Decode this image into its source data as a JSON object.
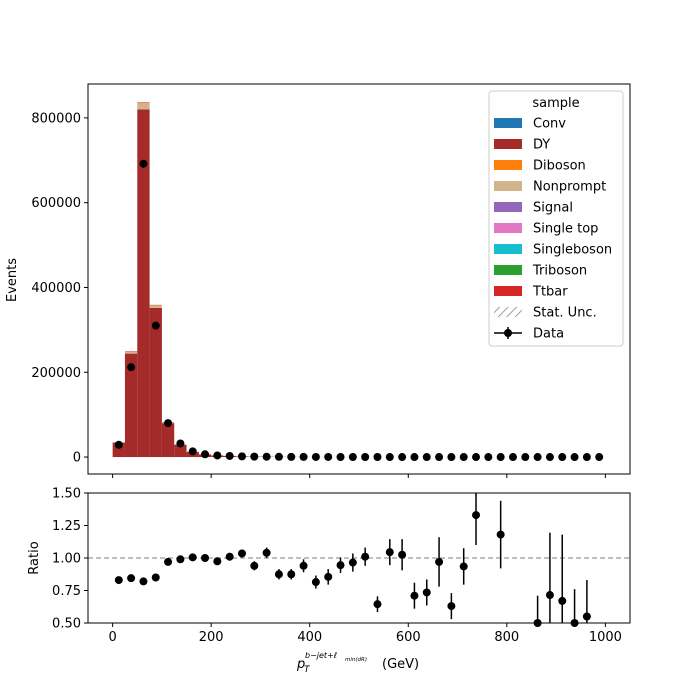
{
  "chart_data": {
    "type": "bar",
    "stacked": true,
    "xlabel": "(GeV)",
    "xlabel_math": {
      "base": "p",
      "sub": "T",
      "sup_main": "b−jet+ℓ",
      "sup_sub": "min(dR)"
    },
    "main_panel": {
      "ylabel": "Events",
      "xlim": [
        -50,
        1050
      ],
      "ylim": [
        -40000,
        880000
      ],
      "yticks": [
        0,
        200000,
        400000,
        600000,
        800000
      ],
      "ytick_labels": [
        "0",
        "200000",
        "400000",
        "600000",
        "800000"
      ]
    },
    "ratio_panel": {
      "ylabel": "Ratio",
      "ylim": [
        0.5,
        1.5
      ],
      "yticks": [
        0.5,
        0.75,
        1.0,
        1.25,
        1.5
      ],
      "ytick_labels": [
        "0.50",
        "0.75",
        "1.00",
        "1.25",
        "1.50"
      ],
      "reference_line": 1.0
    },
    "xticks": [
      0,
      200,
      400,
      600,
      800,
      1000
    ],
    "xtick_labels": [
      "0",
      "200",
      "400",
      "600",
      "800",
      "1000"
    ],
    "bin_edges": [
      0,
      25,
      50,
      75,
      100,
      125,
      150,
      175,
      200,
      225,
      250,
      275,
      300,
      325,
      350,
      375,
      400,
      425,
      450,
      475,
      500,
      525,
      550,
      575,
      600,
      625,
      650,
      675,
      700,
      725,
      750,
      775,
      800,
      825,
      850,
      875,
      900,
      925,
      950,
      975,
      1000
    ],
    "legend": {
      "title": "sample",
      "position": "top-right",
      "entries": [
        {
          "name": "Conv",
          "color": "#1f77b4",
          "kind": "patch"
        },
        {
          "name": "DY",
          "color": "#a52a2a",
          "kind": "patch"
        },
        {
          "name": "Diboson",
          "color": "#ff7f0e",
          "kind": "patch"
        },
        {
          "name": "Nonprompt",
          "color": "#d2b48c",
          "kind": "patch"
        },
        {
          "name": "Signal",
          "color": "#9467bd",
          "kind": "patch"
        },
        {
          "name": "Single top",
          "color": "#e377c2",
          "kind": "patch"
        },
        {
          "name": "Singleboson",
          "color": "#17becf",
          "kind": "patch"
        },
        {
          "name": "Triboson",
          "color": "#2ca02c",
          "kind": "patch"
        },
        {
          "name": "Ttbar",
          "color": "#d62728",
          "kind": "patch"
        },
        {
          "name": "Stat. Unc.",
          "color": "#808080",
          "kind": "hatch"
        },
        {
          "name": "Data",
          "color": "#000000",
          "kind": "errorbar"
        }
      ]
    },
    "series": [
      {
        "name": "DY",
        "values": [
          34000,
          244000,
          820000,
          352000,
          80000,
          29000,
          12000,
          6000,
          3500,
          2500,
          1500,
          1000,
          800,
          600,
          400,
          300,
          250,
          200,
          150,
          120,
          100,
          80,
          60,
          50,
          40,
          30,
          25,
          20,
          15,
          12,
          10,
          8,
          6,
          5,
          4,
          3,
          3,
          2,
          2,
          1
        ]
      },
      {
        "name": "Nonprompt",
        "values": [
          800,
          5000,
          15000,
          6000,
          1500,
          600,
          300,
          150,
          100,
          80,
          60,
          40,
          30,
          20,
          15,
          10,
          8,
          6,
          5,
          4,
          3,
          3,
          2,
          2,
          1,
          1,
          1,
          1,
          1,
          1,
          1,
          1,
          1,
          1,
          1,
          1,
          1,
          1,
          1,
          1
        ]
      },
      {
        "name": "Ttbar",
        "values": [
          200,
          800,
          1500,
          1000,
          600,
          400,
          300,
          200,
          150,
          120,
          100,
          80,
          60,
          50,
          40,
          30,
          25,
          20,
          15,
          12,
          10,
          8,
          6,
          5,
          4,
          3,
          3,
          2,
          2,
          2,
          1,
          1,
          1,
          1,
          1,
          1,
          1,
          1,
          1,
          1
        ]
      },
      {
        "name": "Data",
        "values": [
          29000,
          212000,
          692000,
          310000,
          80000,
          32000,
          13500,
          6500,
          3700,
          2600,
          1600,
          1000,
          800,
          550,
          400,
          300,
          230,
          180,
          140,
          120,
          100,
          80,
          60,
          50,
          40,
          30,
          25,
          20,
          15,
          12,
          10,
          8,
          6,
          5,
          4,
          3,
          3,
          2,
          2,
          1
        ]
      }
    ],
    "ratio": {
      "x": [
        12.5,
        37.5,
        62.5,
        87.5,
        112.5,
        137.5,
        162.5,
        187.5,
        212.5,
        237.5,
        262.5,
        287.5,
        312.5,
        337.5,
        362.5,
        387.5,
        412.5,
        437.5,
        462.5,
        487.5,
        512.5,
        537.5,
        562.5,
        587.5,
        612.5,
        637.5,
        662.5,
        687.5,
        712.5,
        737.5,
        787.5,
        862.5,
        887.5,
        912.5,
        937.5,
        962.5
      ],
      "values": [
        0.83,
        0.845,
        0.82,
        0.85,
        0.97,
        0.99,
        1.005,
        1.0,
        0.975,
        1.01,
        1.035,
        0.94,
        1.04,
        0.875,
        0.875,
        0.94,
        0.815,
        0.855,
        0.945,
        0.965,
        1.01,
        0.645,
        1.045,
        1.025,
        0.71,
        0.735,
        0.97,
        0.63,
        0.935,
        1.33,
        1.18,
        0.5,
        0.715,
        0.67,
        0.5,
        0.55
      ],
      "errors": [
        0.005,
        0.004,
        0.003,
        0.004,
        0.01,
        0.015,
        0.02,
        0.025,
        0.03,
        0.03,
        0.03,
        0.035,
        0.04,
        0.04,
        0.04,
        0.05,
        0.05,
        0.06,
        0.06,
        0.07,
        0.07,
        0.06,
        0.1,
        0.12,
        0.1,
        0.1,
        0.19,
        0.1,
        0.14,
        0.23,
        0.26,
        0.21,
        0.48,
        0.51,
        0.26,
        0.28
      ]
    }
  }
}
